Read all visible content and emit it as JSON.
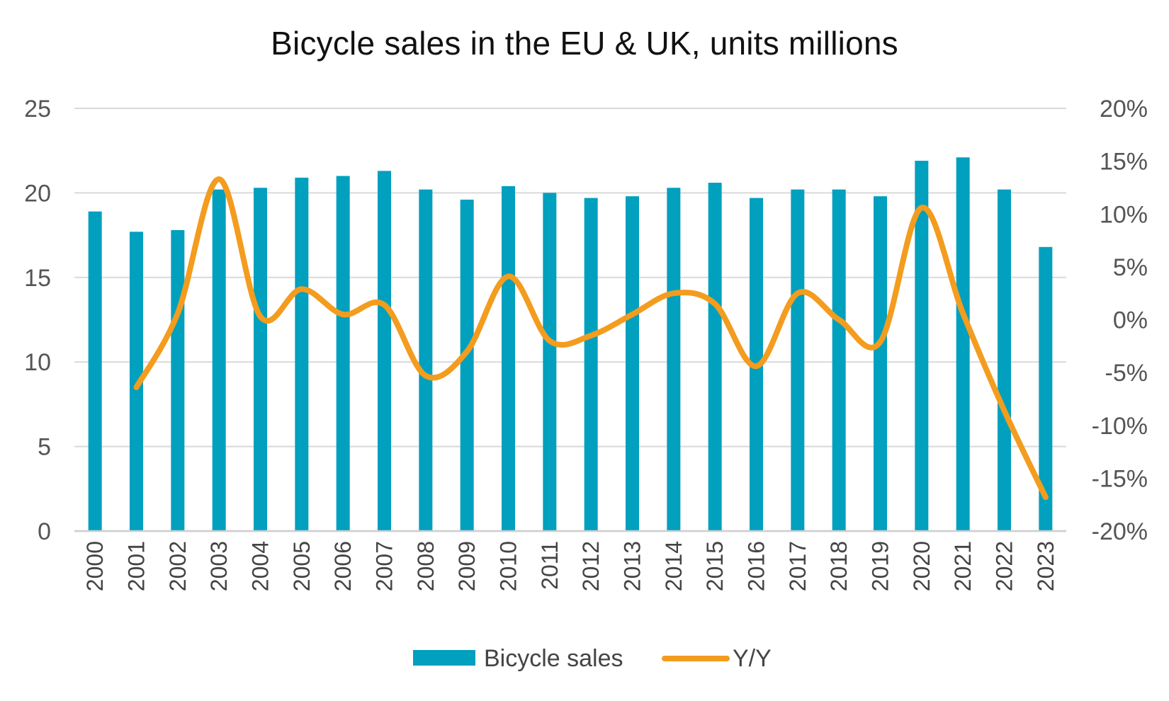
{
  "chart_data": {
    "type": "bar",
    "title": "Bicycle sales in the EU & UK, units millions",
    "categories": [
      "2000",
      "2001",
      "2002",
      "2003",
      "2004",
      "2005",
      "2006",
      "2007",
      "2008",
      "2009",
      "2010",
      "2011",
      "2012",
      "2013",
      "2014",
      "2015",
      "2016",
      "2017",
      "2018",
      "2019",
      "2020",
      "2021",
      "2022",
      "2023"
    ],
    "series": [
      {
        "name": "Bicycle sales",
        "type": "bar",
        "axis": "left",
        "color": "#00a0be",
        "values": [
          18.9,
          17.7,
          17.8,
          20.2,
          20.3,
          20.9,
          21.0,
          21.3,
          20.2,
          19.6,
          20.4,
          20.0,
          19.7,
          19.8,
          20.3,
          20.6,
          19.7,
          20.2,
          20.2,
          19.8,
          21.9,
          22.1,
          20.2,
          16.8
        ]
      },
      {
        "name": "Y/Y",
        "type": "line",
        "axis": "right",
        "color": "#f39c1e",
        "values": [
          null,
          -6.4,
          0.6,
          13.3,
          0.3,
          2.9,
          0.5,
          1.4,
          -5.3,
          -3.0,
          4.1,
          -2.0,
          -1.5,
          0.5,
          2.5,
          1.5,
          -4.4,
          2.5,
          0.0,
          -2.1,
          10.6,
          0.6,
          -8.6,
          -16.8
        ]
      }
    ],
    "y_left": {
      "min": 0,
      "max": 25,
      "ticks": [
        "0",
        "5",
        "10",
        "15",
        "20",
        "25"
      ]
    },
    "y_right": {
      "min": -20,
      "max": 20,
      "ticks": [
        "-20%",
        "-15%",
        "-10%",
        "-5%",
        "0%",
        "5%",
        "10%",
        "15%",
        "20%"
      ]
    },
    "grid": true,
    "legend_position": "bottom"
  }
}
